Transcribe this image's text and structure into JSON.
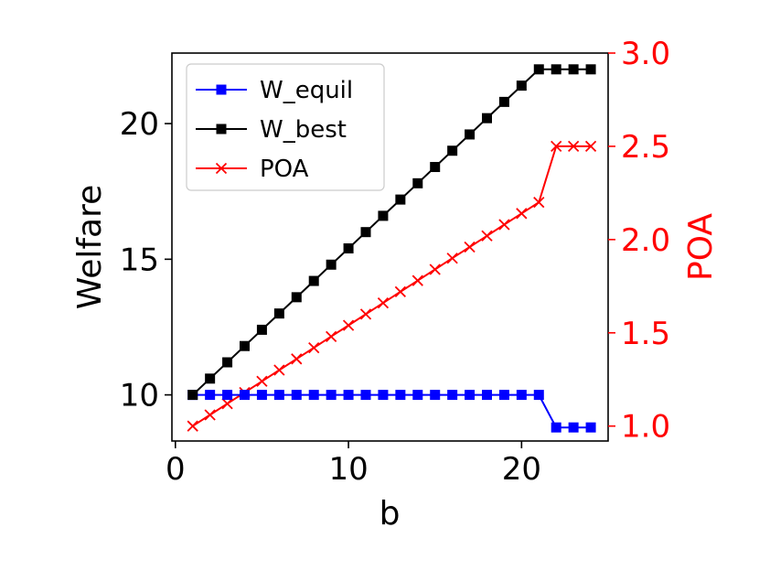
{
  "chart_data": {
    "type": "line",
    "x": [
      1,
      2,
      3,
      4,
      5,
      6,
      7,
      8,
      9,
      10,
      11,
      12,
      13,
      14,
      15,
      16,
      17,
      18,
      19,
      20,
      21,
      22,
      23,
      24
    ],
    "xlabel": "b",
    "ylabel": "Welfare",
    "y2label": "POA",
    "xlim": [
      -0.2,
      25.0
    ],
    "ylim": [
      8.3,
      22.6
    ],
    "y2lim": [
      0.92,
      3.0
    ],
    "xticks": [
      0,
      10,
      20
    ],
    "yticks": [
      10,
      15,
      20
    ],
    "y2ticks": [
      1.0,
      1.5,
      2.0,
      2.5,
      3.0
    ],
    "xtick_labels": [
      "0",
      "10",
      "20"
    ],
    "ytick_labels": [
      "10",
      "15",
      "20"
    ],
    "y2tick_labels": [
      "1.0",
      "1.5",
      "2.0",
      "2.5",
      "3.0"
    ],
    "legend_position": "top-left",
    "grid": false,
    "series": [
      {
        "name": "W_equil",
        "axis": "left",
        "color": "#0000ff",
        "marker": "square",
        "values": [
          10,
          10,
          10,
          10,
          10,
          10,
          10,
          10,
          10,
          10,
          10,
          10,
          10,
          10,
          10,
          10,
          10,
          10,
          10,
          10,
          10,
          8.8,
          8.8,
          8.8
        ]
      },
      {
        "name": "W_best",
        "axis": "left",
        "color": "#000000",
        "marker": "square",
        "values": [
          10,
          10.6,
          11.2,
          11.8,
          12.4,
          13.0,
          13.6,
          14.2,
          14.8,
          15.4,
          16.0,
          16.6,
          17.2,
          17.8,
          18.4,
          19.0,
          19.6,
          20.2,
          20.8,
          21.4,
          22,
          22,
          22,
          22
        ]
      },
      {
        "name": "POA",
        "axis": "right",
        "color": "#ff0000",
        "marker": "x",
        "values": [
          1.0,
          1.06,
          1.12,
          1.18,
          1.24,
          1.3,
          1.36,
          1.42,
          1.48,
          1.54,
          1.6,
          1.66,
          1.72,
          1.78,
          1.84,
          1.9,
          1.96,
          2.02,
          2.08,
          2.14,
          2.2,
          2.5,
          2.5,
          2.5
        ]
      }
    ]
  }
}
